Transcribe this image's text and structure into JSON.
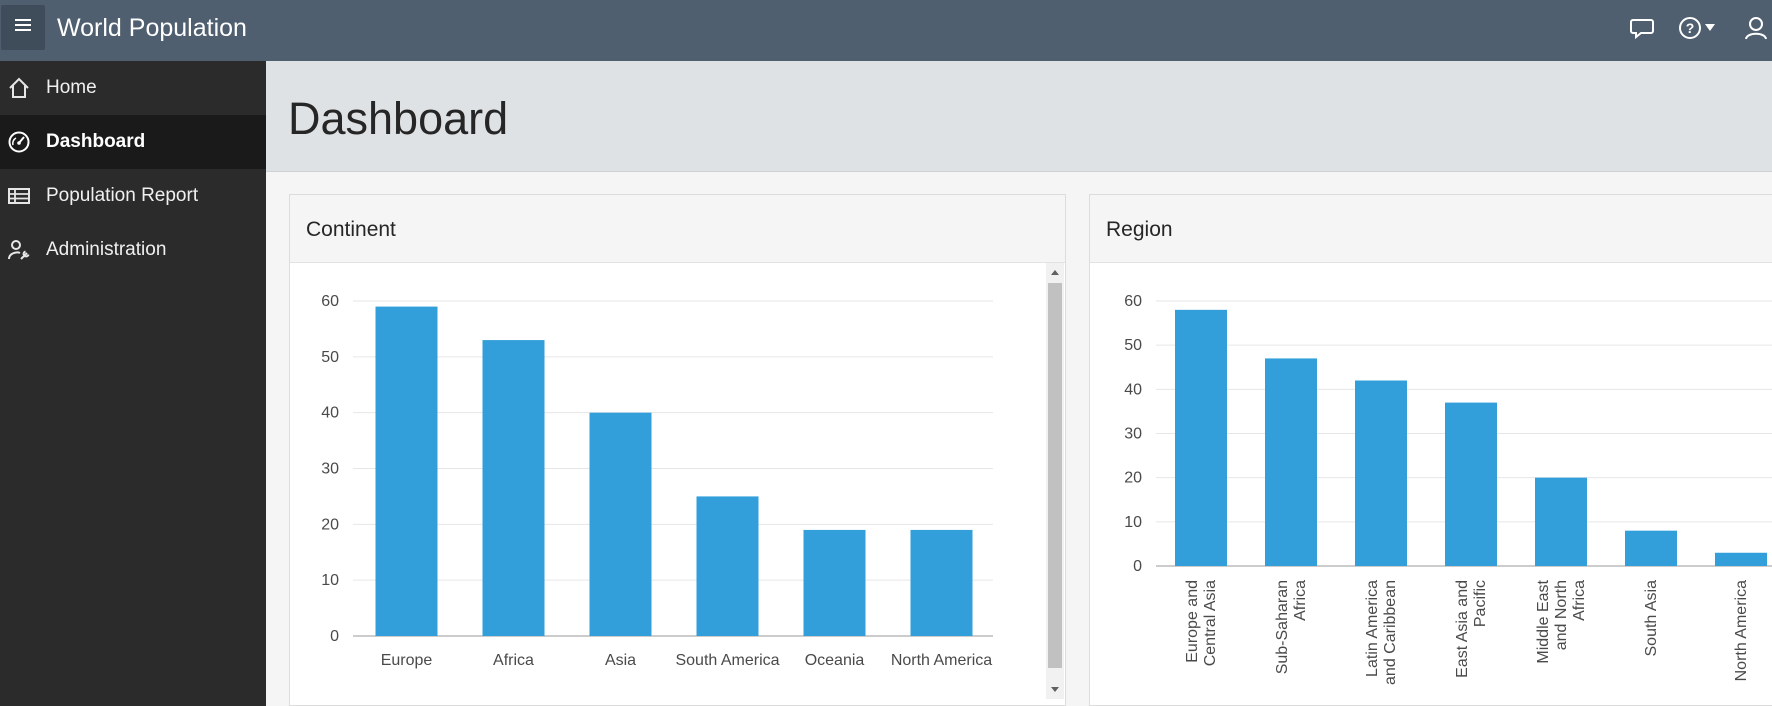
{
  "header": {
    "menu_icon": "hamburger-menu-icon",
    "app_title": "World Population",
    "icons": [
      "feedback-icon",
      "help-icon",
      "user-icon"
    ]
  },
  "sidebar": {
    "items": [
      {
        "label": "Home",
        "icon": "home-icon",
        "active": false
      },
      {
        "label": "Dashboard",
        "icon": "dashboard-gauge-icon",
        "active": true
      },
      {
        "label": "Population Report",
        "icon": "table-icon",
        "active": false
      },
      {
        "label": "Administration",
        "icon": "user-wrench-icon",
        "active": false
      }
    ]
  },
  "page": {
    "title": "Dashboard"
  },
  "colors": {
    "bar": "#329fdb",
    "header": "#4f5f6f",
    "sidebar": "#2b2b2b"
  },
  "continent_region": {
    "title": "Continent"
  },
  "region_region": {
    "title": "Region"
  },
  "chart_data": [
    {
      "type": "bar",
      "title": "Continent",
      "categories": [
        "Europe",
        "Africa",
        "Asia",
        "South America",
        "Oceania",
        "North America"
      ],
      "values": [
        59,
        53,
        40,
        25,
        19,
        19
      ],
      "ylim": [
        0,
        60
      ],
      "yticks": [
        0,
        10,
        20,
        30,
        40,
        50,
        60
      ],
      "xlabel": "",
      "ylabel": "",
      "grid": true
    },
    {
      "type": "bar",
      "title": "Region",
      "categories": [
        [
          "Europe and",
          "Central Asia"
        ],
        [
          "Sub-Saharan",
          "Africa"
        ],
        [
          "Latin America",
          "and Caribbean"
        ],
        [
          "East Asia and",
          "Pacific"
        ],
        [
          "Middle East",
          "and North",
          "Africa"
        ],
        [
          "South Asia"
        ],
        [
          "North America"
        ]
      ],
      "values": [
        58,
        47,
        42,
        37,
        20,
        8,
        3
      ],
      "ylim": [
        0,
        60
      ],
      "yticks": [
        0,
        10,
        20,
        30,
        40,
        50,
        60
      ],
      "xlabel": "",
      "ylabel": "",
      "grid": true
    }
  ]
}
